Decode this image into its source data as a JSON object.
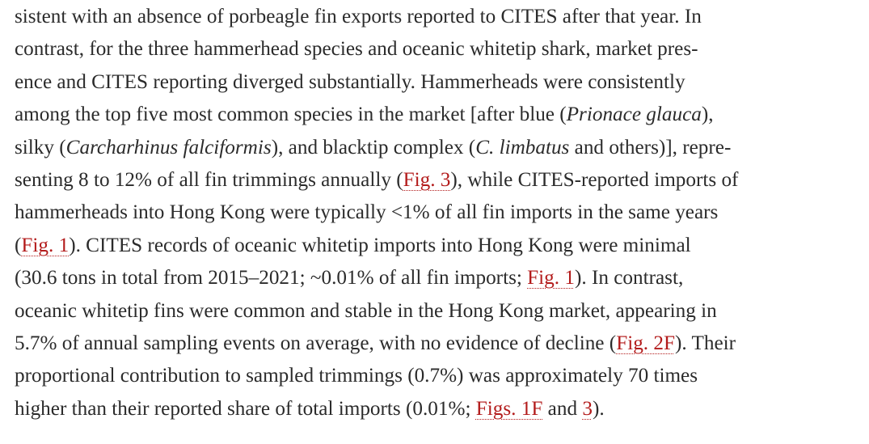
{
  "paragraph": {
    "lines": [
      [
        "sistent with an absence of porbeagle fin exports reported to CITES after that year. In"
      ],
      [
        "contrast, for the three hammerhead species and oceanic whitetip shark, market pres-"
      ],
      [
        "ence and CITES reporting diverged substantially. Hammerheads were consistently"
      ],
      [
        "among the top five most common species in the market [after blue (",
        {
          "text": "Prionace glauca",
          "italic": true
        },
        "),"
      ],
      [
        "silky (",
        {
          "text": "Carcharhinus falciformis",
          "italic": true
        },
        "), and blacktip complex (",
        {
          "text": "C. limbatus",
          "italic": true
        },
        " and others)], repre-"
      ],
      [
        "senting 8 to 12% of all fin trimmings annually (",
        {
          "text": "Fig. 3",
          "link": true
        },
        "), while CITES-reported imports of"
      ],
      [
        "hammerheads into Hong Kong were typically <1% of all fin imports in the same years"
      ],
      [
        "(",
        {
          "text": "Fig. 1",
          "link": true
        },
        "). CITES records of oceanic whitetip imports into Hong Kong were minimal"
      ],
      [
        "(30.6 tons in total from 2015–2021; ~0.01% of all fin imports; ",
        {
          "text": "Fig. 1",
          "link": true
        },
        "). In contrast,"
      ],
      [
        "oceanic whitetip fins were common and stable in the Hong Kong market, appearing in"
      ],
      [
        "5.7% of annual sampling events on average, with no evidence of decline (",
        {
          "text": "Fig. 2F",
          "link": true
        },
        "). Their"
      ],
      [
        "proportional contribution to sampled trimmings (0.7%) was approximately 70 times"
      ],
      [
        "higher than their reported share of total imports (0.01%; ",
        {
          "text": "Figs. 1F",
          "link": true
        },
        " and ",
        {
          "text": "3",
          "link": true
        },
        ")."
      ]
    ]
  }
}
